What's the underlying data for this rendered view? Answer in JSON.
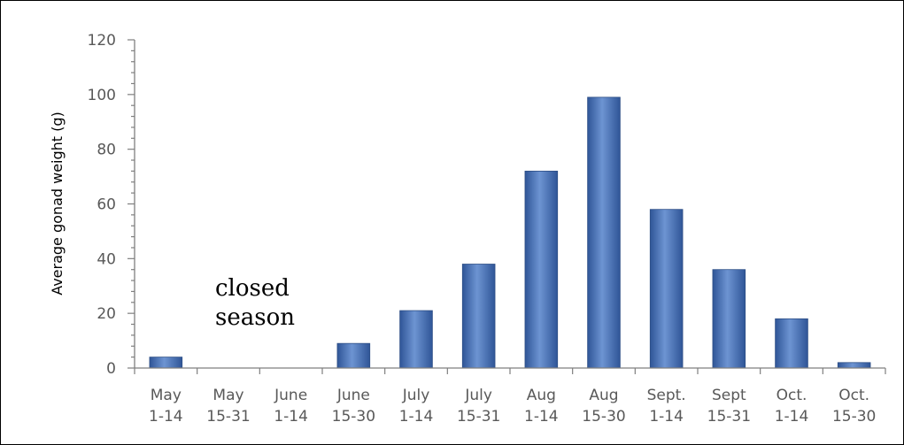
{
  "chart_data": {
    "type": "bar",
    "categories": [
      [
        "May",
        "1-14"
      ],
      [
        "May",
        "15-31"
      ],
      [
        "June",
        "1-14"
      ],
      [
        "June",
        "15-30"
      ],
      [
        "July",
        "1-14"
      ],
      [
        "July",
        "15-31"
      ],
      [
        "Aug",
        "1-14"
      ],
      [
        "Aug",
        "15-30"
      ],
      [
        "Sept.",
        "1-14"
      ],
      [
        "Sept",
        "15-31"
      ],
      [
        "Oct.",
        "1-14"
      ],
      [
        "Oct.",
        "15-30"
      ]
    ],
    "values": [
      4,
      0,
      0,
      9,
      21,
      38,
      72,
      99,
      58,
      36,
      18,
      2
    ],
    "title": "",
    "xlabel": "",
    "ylabel": "Average gonad weight (g)",
    "ylim": [
      0,
      120
    ],
    "yticks": [
      "0",
      "20",
      "40",
      "60",
      "80",
      "100",
      "120"
    ],
    "annotation": [
      "closed",
      "season"
    ],
    "bar_color": "#4a74b8",
    "grid": false,
    "legend": "none"
  }
}
